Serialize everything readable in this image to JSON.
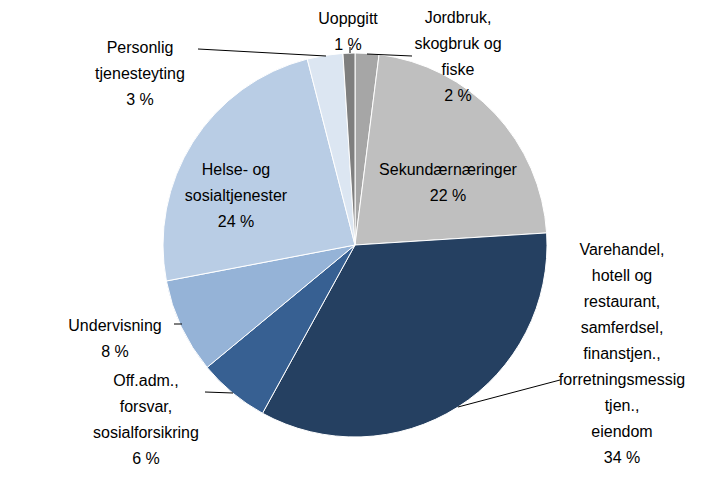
{
  "chart_data": {
    "type": "pie",
    "categories": [
      "Jordbruk, skogbruk og fiske",
      "Sekundærnæringer",
      "Varehandel, hotell og restaurant, samferdsel, finanstjen., forretningsmessig tjen., eiendom",
      "Off.adm., forsvar, sosialforsikring",
      "Undervisning",
      "Helse- og sosialtjenester",
      "Personlig tjenesteyting",
      "Uoppgitt"
    ],
    "values": [
      2,
      22,
      34,
      6,
      8,
      24,
      3,
      1
    ],
    "value_labels": [
      "2 %",
      "22 %",
      "34 %",
      "6 %",
      "8 %",
      "24 %",
      "3 %",
      "1 %"
    ],
    "colors": [
      "#a6a6a6",
      "#bfbfbf",
      "#254061",
      "#376092",
      "#95b3d7",
      "#b9cde5",
      "#dce6f2",
      "#7f7f7f"
    ],
    "data_labels": true
  }
}
